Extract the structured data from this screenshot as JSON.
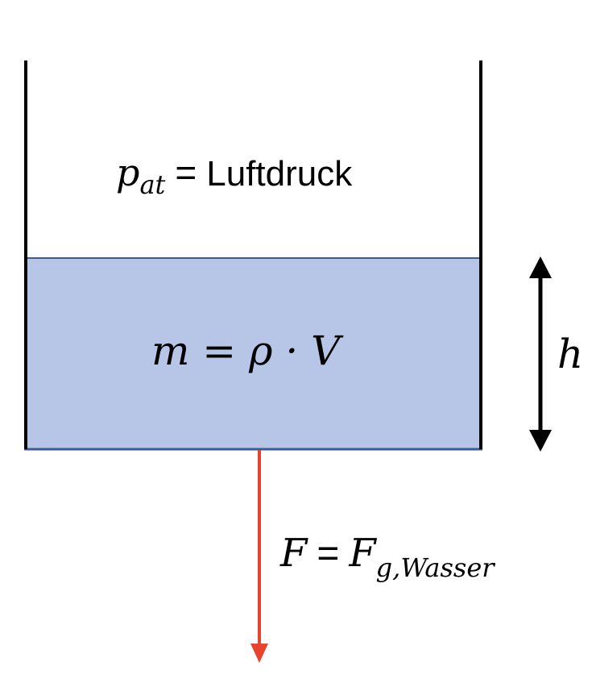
{
  "labels": {
    "pressure_symbol": "p",
    "pressure_subscript": "at",
    "pressure_equals": "=",
    "pressure_text": "Luftdruck",
    "mass_formula": "m = ρ · V",
    "height_symbol": "h",
    "force_symbol": "F",
    "force_equals": "=",
    "force_main": "F",
    "force_subscript": "g,Wasser"
  },
  "colors": {
    "water_fill": "#b7c6e6",
    "water_border": "#3a5a98",
    "container_wall": "#000000",
    "force_arrow": "#e8432e",
    "height_arrow": "#000000"
  }
}
